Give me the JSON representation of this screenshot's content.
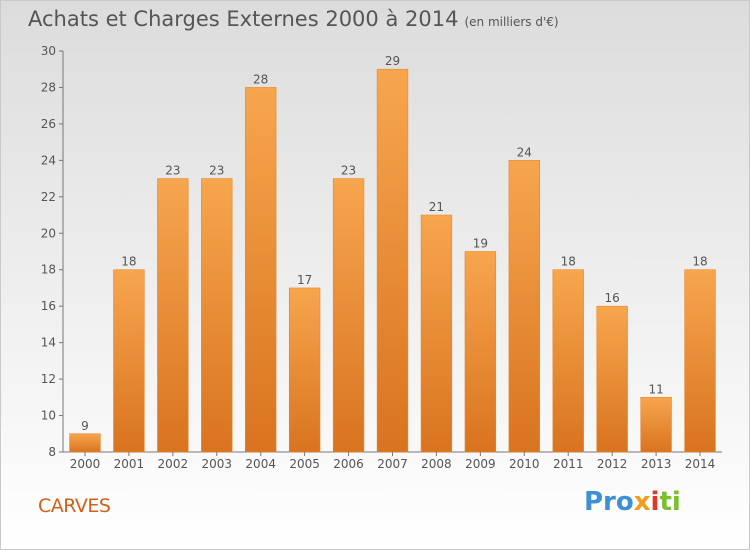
{
  "title": "Achats et Charges Externes 2000 à 2014",
  "subtitle": "(en milliers d'€)",
  "location": "CARVES",
  "brand": {
    "parts": [
      "Pro",
      "x",
      "i",
      "ti"
    ]
  },
  "colors": {
    "bar_top": "#f7a64e",
    "bar_bottom": "#d9731f",
    "bar_edge": "#e8862a",
    "label": "#555555",
    "location": "#d2601a"
  },
  "chart_data": {
    "type": "bar",
    "categories": [
      "2000",
      "2001",
      "2002",
      "2003",
      "2004",
      "2005",
      "2006",
      "2007",
      "2008",
      "2009",
      "2010",
      "2011",
      "2012",
      "2013",
      "2014"
    ],
    "values": [
      9,
      18,
      23,
      23,
      28,
      17,
      23,
      29,
      21,
      19,
      24,
      18,
      16,
      11,
      18
    ],
    "data_labels": [
      "9",
      "18",
      "23",
      "23",
      "28",
      "17",
      "23",
      "29",
      "21",
      "19",
      "24",
      "18",
      "16",
      "11",
      "18"
    ],
    "ylim": [
      8,
      30
    ],
    "yticks": [
      8,
      10,
      12,
      14,
      16,
      18,
      20,
      22,
      24,
      26,
      28,
      30
    ],
    "grid": false
  }
}
